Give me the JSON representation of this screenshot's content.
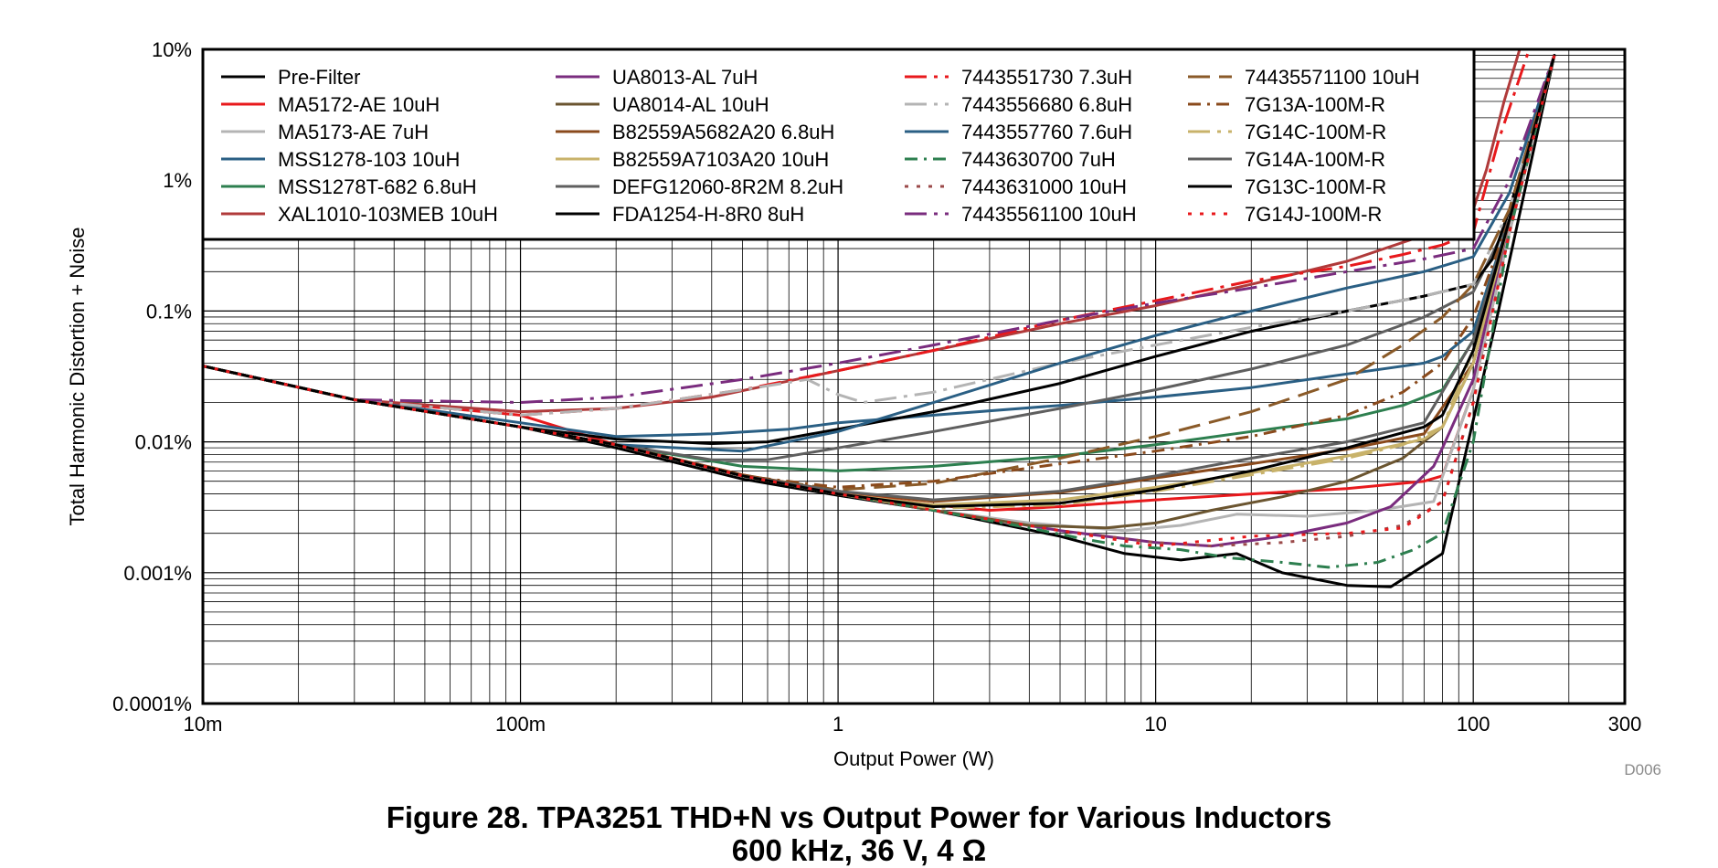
{
  "chart_data": {
    "type": "line",
    "xscale": "log",
    "yscale": "log",
    "xlim": [
      0.01,
      300
    ],
    "ylim": [
      0.0001,
      10
    ],
    "xlabel": "Output Power (W)",
    "ylabel": "Total Harmonic Distortion + Noise",
    "x_ticks": [
      {
        "value": 0.01,
        "label": "10m"
      },
      {
        "value": 0.1,
        "label": "100m"
      },
      {
        "value": 1,
        "label": "1"
      },
      {
        "value": 10,
        "label": "10"
      },
      {
        "value": 100,
        "label": "100"
      },
      {
        "value": 300,
        "label": "300"
      }
    ],
    "y_ticks": [
      {
        "value": 10,
        "label": "10%"
      },
      {
        "value": 1,
        "label": "1%"
      },
      {
        "value": 0.1,
        "label": "0.1%"
      },
      {
        "value": 0.01,
        "label": "0.01%"
      },
      {
        "value": 0.001,
        "label": "0.001%"
      },
      {
        "value": 0.0001,
        "label": "0.0001%"
      }
    ],
    "grid": true,
    "legend_position": "top-left",
    "figure_id": "D006",
    "caption_line1": "Figure 28. TPA3251 THD+N vs Output Power for Various Inductors",
    "caption_line2": "600 kHz, 36 V, 4 Ω",
    "series": [
      {
        "name": "Pre-Filter",
        "color": "#000000",
        "dash": "solid",
        "x": [
          0.01,
          0.03,
          0.1,
          0.2,
          0.5,
          1,
          2,
          5,
          8,
          12,
          18,
          25,
          40,
          55,
          80,
          120,
          180
        ],
        "y": [
          0.038,
          0.021,
          0.013,
          0.009,
          0.0052,
          0.0039,
          0.003,
          0.0019,
          0.0014,
          0.00125,
          0.0014,
          0.001,
          0.0008,
          0.00078,
          0.0014,
          0.1,
          9
        ]
      },
      {
        "name": "MA5172-AE 10uH",
        "color": "#e8191c",
        "dash": "solid",
        "x": [
          0.01,
          0.03,
          0.1,
          0.2,
          0.5,
          1,
          2,
          3,
          5,
          10,
          20,
          40,
          70,
          80,
          100,
          130,
          180
        ],
        "y": [
          0.038,
          0.021,
          0.016,
          0.0095,
          0.0056,
          0.0041,
          0.0033,
          0.003,
          0.0032,
          0.0036,
          0.004,
          0.0044,
          0.005,
          0.0055,
          0.025,
          0.4,
          9
        ]
      },
      {
        "name": "MA5173-AE 7uH",
        "color": "#b4b4b4",
        "dash": "solid",
        "x": [
          0.01,
          0.03,
          0.1,
          0.2,
          0.5,
          1,
          2,
          4,
          8,
          12,
          18,
          30,
          50,
          75,
          100,
          130,
          180
        ],
        "y": [
          0.038,
          0.021,
          0.013,
          0.0095,
          0.0055,
          0.004,
          0.003,
          0.0024,
          0.0021,
          0.0023,
          0.0028,
          0.0027,
          0.003,
          0.0035,
          0.025,
          0.4,
          9
        ]
      },
      {
        "name": "MSS1278-103 10uH",
        "color": "#2a5f84",
        "dash": "solid",
        "x": [
          0.01,
          0.03,
          0.1,
          0.2,
          0.4,
          0.7,
          1,
          2,
          5,
          10,
          20,
          40,
          70,
          80,
          100,
          130,
          180
        ],
        "y": [
          0.038,
          0.021,
          0.014,
          0.011,
          0.0115,
          0.0125,
          0.014,
          0.016,
          0.019,
          0.022,
          0.026,
          0.033,
          0.04,
          0.045,
          0.07,
          0.5,
          9
        ]
      },
      {
        "name": "MSS1278T-682 6.8uH",
        "color": "#2d7f4f",
        "dash": "solid",
        "x": [
          0.01,
          0.03,
          0.1,
          0.2,
          0.5,
          1,
          2,
          5,
          10,
          20,
          40,
          60,
          80,
          100,
          130,
          180
        ],
        "y": [
          0.038,
          0.021,
          0.013,
          0.0095,
          0.0065,
          0.006,
          0.0065,
          0.0078,
          0.0095,
          0.012,
          0.015,
          0.019,
          0.025,
          0.06,
          0.5,
          9
        ]
      },
      {
        "name": "XAL1010-103MEB 10uH",
        "color": "#b03a3a",
        "dash": "solid",
        "x": [
          0.01,
          0.03,
          0.1,
          0.2,
          0.4,
          0.6,
          1,
          2,
          5,
          10,
          20,
          40,
          70,
          100,
          110,
          125,
          140
        ],
        "y": [
          0.038,
          0.021,
          0.017,
          0.018,
          0.022,
          0.027,
          0.035,
          0.05,
          0.08,
          0.11,
          0.16,
          0.24,
          0.38,
          0.6,
          1.2,
          4,
          10
        ]
      },
      {
        "name": "UA8013-AL 7uH",
        "color": "#7a2c7e",
        "dash": "solid",
        "x": [
          0.01,
          0.03,
          0.1,
          0.2,
          0.5,
          1,
          2,
          5,
          10,
          15,
          25,
          40,
          55,
          75,
          80,
          100,
          130,
          180
        ],
        "y": [
          0.038,
          0.021,
          0.013,
          0.0095,
          0.0055,
          0.004,
          0.003,
          0.0021,
          0.0017,
          0.0016,
          0.0019,
          0.0024,
          0.0032,
          0.0065,
          0.009,
          0.03,
          0.5,
          9
        ]
      },
      {
        "name": "UA8014-AL 10uH",
        "color": "#6b5530",
        "dash": "solid",
        "x": [
          0.01,
          0.03,
          0.1,
          0.2,
          0.5,
          1,
          2,
          4,
          7,
          10,
          15,
          25,
          40,
          60,
          80,
          100,
          130,
          180
        ],
        "y": [
          0.038,
          0.021,
          0.013,
          0.0095,
          0.0055,
          0.004,
          0.003,
          0.0023,
          0.0022,
          0.0024,
          0.003,
          0.0038,
          0.005,
          0.0075,
          0.013,
          0.04,
          0.5,
          9
        ]
      },
      {
        "name": "B82559A5682A20 6.8uH",
        "color": "#8a4a1c",
        "dash": "solid",
        "x": [
          0.01,
          0.03,
          0.1,
          0.2,
          0.5,
          1,
          2,
          5,
          10,
          20,
          40,
          70,
          100,
          130,
          180
        ],
        "y": [
          0.038,
          0.021,
          0.013,
          0.0095,
          0.0056,
          0.0042,
          0.0035,
          0.0041,
          0.0053,
          0.0068,
          0.0088,
          0.0115,
          0.04,
          0.5,
          9
        ]
      },
      {
        "name": "B82559A7103A20 10uH",
        "color": "#c8b26a",
        "dash": "solid",
        "x": [
          0.01,
          0.03,
          0.1,
          0.2,
          0.5,
          1,
          2,
          5,
          10,
          20,
          40,
          70,
          80,
          100,
          130,
          180
        ],
        "y": [
          0.038,
          0.021,
          0.013,
          0.0095,
          0.0055,
          0.004,
          0.0033,
          0.0036,
          0.0045,
          0.0058,
          0.0078,
          0.0105,
          0.013,
          0.04,
          0.5,
          9
        ]
      },
      {
        "name": "DEFG12060-8R2M 8.2uH",
        "color": "#5f5f5f",
        "dash": "solid",
        "x": [
          0.01,
          0.03,
          0.1,
          0.2,
          0.4,
          0.6,
          1,
          2,
          5,
          10,
          20,
          40,
          70,
          100,
          130,
          180
        ],
        "y": [
          0.038,
          0.021,
          0.013,
          0.0095,
          0.0073,
          0.0073,
          0.009,
          0.012,
          0.018,
          0.025,
          0.036,
          0.055,
          0.09,
          0.14,
          0.5,
          9
        ]
      },
      {
        "name": "FDA1254-H-8R0 8uH",
        "color": "#000000",
        "dash": "solid",
        "x": [
          0.01,
          0.03,
          0.1,
          0.2,
          0.4,
          0.6,
          1,
          2,
          5,
          10,
          20,
          40,
          70,
          100,
          115,
          130,
          180
        ],
        "y": [
          0.038,
          0.021,
          0.013,
          0.0105,
          0.0097,
          0.01,
          0.0125,
          0.017,
          0.028,
          0.045,
          0.07,
          0.1,
          0.13,
          0.16,
          0.25,
          0.6,
          9
        ]
      },
      {
        "name": "7443551730 7.3uH",
        "color": "#e8191c",
        "dash": "longdashdot",
        "x": [
          0.01,
          0.03,
          0.1,
          0.2,
          0.5,
          1,
          2,
          5,
          10,
          20,
          40,
          60,
          80,
          100,
          120,
          150
        ],
        "y": [
          0.038,
          0.021,
          0.016,
          0.018,
          0.025,
          0.035,
          0.05,
          0.085,
          0.12,
          0.17,
          0.22,
          0.27,
          0.32,
          0.4,
          2,
          10
        ]
      },
      {
        "name": "7443556680 6.8uH",
        "color": "#b4b4b4",
        "dash": "longdashdot",
        "x": [
          0.01,
          0.03,
          0.1,
          0.2,
          0.5,
          0.8,
          1,
          1.2,
          2,
          5,
          10,
          20,
          40,
          70,
          100,
          130,
          180
        ],
        "y": [
          0.038,
          0.021,
          0.016,
          0.018,
          0.025,
          0.03,
          0.023,
          0.02,
          0.024,
          0.04,
          0.055,
          0.075,
          0.1,
          0.13,
          0.16,
          0.6,
          9
        ]
      },
      {
        "name": "7443557760 7.6uH",
        "color": "#2a5f84",
        "dash": "solid",
        "x": [
          0.01,
          0.03,
          0.1,
          0.2,
          0.5,
          1,
          2,
          5,
          10,
          20,
          40,
          70,
          100,
          130,
          180
        ],
        "y": [
          0.038,
          0.021,
          0.013,
          0.0095,
          0.0085,
          0.012,
          0.02,
          0.04,
          0.065,
          0.1,
          0.15,
          0.2,
          0.26,
          0.8,
          9
        ]
      },
      {
        "name": "7443630700 7uH",
        "color": "#2d7f4f",
        "dash": "dashdot",
        "x": [
          0.01,
          0.03,
          0.1,
          0.2,
          0.5,
          1,
          2,
          4,
          6,
          8,
          12,
          17,
          25,
          35,
          50,
          65,
          80,
          100,
          130,
          180
        ],
        "y": [
          0.038,
          0.021,
          0.013,
          0.0095,
          0.0055,
          0.004,
          0.003,
          0.0022,
          0.0018,
          0.0016,
          0.0015,
          0.0013,
          0.0012,
          0.0011,
          0.0012,
          0.0015,
          0.002,
          0.01,
          0.4,
          9
        ]
      },
      {
        "name": "7443631000 10uH",
        "color": "#9b4a4a",
        "dash": "dot",
        "x": [
          0.01,
          0.03,
          0.1,
          0.2,
          0.5,
          1,
          2,
          5,
          10,
          15,
          25,
          40,
          60,
          80,
          100,
          130,
          180
        ],
        "y": [
          0.038,
          0.021,
          0.013,
          0.0095,
          0.0055,
          0.004,
          0.003,
          0.0021,
          0.0017,
          0.0016,
          0.0017,
          0.0019,
          0.0023,
          0.0035,
          0.02,
          0.4,
          9
        ]
      },
      {
        "name": "74435561100 10uH",
        "color": "#7a2c7e",
        "dash": "longdashdot",
        "x": [
          0.01,
          0.03,
          0.1,
          0.2,
          0.5,
          1,
          2,
          5,
          10,
          20,
          40,
          70,
          100,
          130,
          180
        ],
        "y": [
          0.038,
          0.021,
          0.02,
          0.022,
          0.03,
          0.04,
          0.055,
          0.085,
          0.115,
          0.15,
          0.2,
          0.25,
          0.3,
          1,
          9
        ]
      },
      {
        "name": "74435571100 10uH",
        "color": "#8a5a28",
        "dash": "longdash",
        "x": [
          0.01,
          0.03,
          0.1,
          0.2,
          0.5,
          1,
          2,
          5,
          10,
          20,
          40,
          60,
          80,
          100,
          130,
          180
        ],
        "y": [
          0.038,
          0.021,
          0.013,
          0.0095,
          0.0055,
          0.0043,
          0.0048,
          0.0075,
          0.011,
          0.017,
          0.03,
          0.055,
          0.09,
          0.16,
          0.6,
          9
        ]
      },
      {
        "name": "7G13A-100M-R",
        "color": "#8a4a1c",
        "dash": "dashdot",
        "x": [
          0.01,
          0.03,
          0.1,
          0.2,
          0.5,
          1,
          2,
          5,
          10,
          20,
          40,
          60,
          80,
          100,
          130,
          180
        ],
        "y": [
          0.038,
          0.021,
          0.013,
          0.0095,
          0.0055,
          0.0045,
          0.005,
          0.0068,
          0.0085,
          0.011,
          0.016,
          0.024,
          0.04,
          0.09,
          0.5,
          9
        ]
      },
      {
        "name": "7G14C-100M-R",
        "color": "#c8b26a",
        "dash": "longdashdot",
        "x": [
          0.01,
          0.03,
          0.1,
          0.2,
          0.5,
          1,
          2,
          5,
          10,
          20,
          40,
          60,
          80,
          100,
          130,
          180
        ],
        "y": [
          0.038,
          0.021,
          0.013,
          0.0095,
          0.0055,
          0.004,
          0.0031,
          0.0033,
          0.0042,
          0.0056,
          0.0075,
          0.0095,
          0.013,
          0.05,
          0.5,
          9
        ]
      },
      {
        "name": "7G14A-100M-R",
        "color": "#5f5f5f",
        "dash": "solid",
        "x": [
          0.01,
          0.03,
          0.1,
          0.2,
          0.5,
          1,
          2,
          5,
          10,
          20,
          40,
          70,
          100,
          130,
          180
        ],
        "y": [
          0.038,
          0.021,
          0.013,
          0.0095,
          0.0055,
          0.0042,
          0.0036,
          0.0042,
          0.0055,
          0.0075,
          0.01,
          0.014,
          0.06,
          0.5,
          9
        ]
      },
      {
        "name": "7G13C-100M-R",
        "color": "#000000",
        "dash": "solid",
        "x": [
          0.01,
          0.03,
          0.1,
          0.2,
          0.5,
          1,
          2,
          5,
          10,
          20,
          40,
          70,
          80,
          100,
          130,
          180
        ],
        "y": [
          0.038,
          0.021,
          0.013,
          0.0095,
          0.0055,
          0.004,
          0.0032,
          0.0034,
          0.0043,
          0.006,
          0.009,
          0.013,
          0.016,
          0.05,
          0.5,
          9
        ]
      },
      {
        "name": "7G14J-100M-R",
        "color": "#e8191c",
        "dash": "dot",
        "x": [
          0.01,
          0.03,
          0.1,
          0.2,
          0.5,
          1,
          2,
          5,
          10,
          20,
          40,
          60,
          80,
          100,
          130,
          180
        ],
        "y": [
          0.038,
          0.021,
          0.013,
          0.0095,
          0.0055,
          0.004,
          0.003,
          0.0021,
          0.0016,
          0.0019,
          0.002,
          0.0022,
          0.0035,
          0.02,
          0.4,
          9
        ]
      }
    ]
  }
}
